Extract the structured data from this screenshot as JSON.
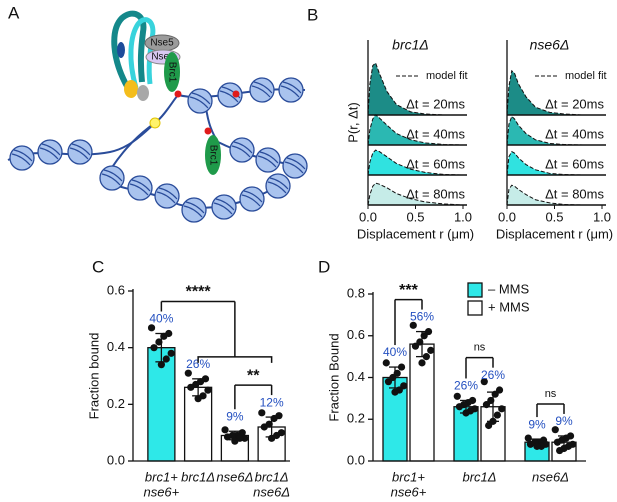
{
  "panels": [
    "A",
    "B",
    "C",
    "D"
  ],
  "diagram": {
    "nse5": "Nse5",
    "nse6": "Nse6",
    "brc1_top": "Brc1",
    "brc1_bottom": "Brc1"
  },
  "chart_data": [
    {
      "type": "density",
      "title": "brc1Δ",
      "legend_label": "model fit",
      "ylabel": "P(r, Δt)",
      "xlabel": "Displacement r (μm)",
      "x": [
        0,
        0.02,
        0.05,
        0.08,
        0.12,
        0.2,
        0.3,
        0.45,
        0.6,
        0.8,
        1.0
      ],
      "xlim": [
        0,
        1
      ],
      "xticks": [
        {
          "value": 0,
          "label": "0.0"
        },
        0.5,
        {
          "value": 1,
          "label": "1.0"
        }
      ],
      "ylim": [
        0,
        1
      ],
      "series": [
        {
          "name": "Δt = 20ms",
          "color": "#1c8c87",
          "values": [
            0,
            0.6,
            0.95,
            1.0,
            0.8,
            0.45,
            0.2,
            0.06,
            0.02,
            0,
            0
          ]
        },
        {
          "name": "Δt = 40ms",
          "color": "#2bb8b2",
          "values": [
            0,
            0.3,
            0.5,
            0.58,
            0.52,
            0.38,
            0.22,
            0.1,
            0.04,
            0.01,
            0
          ]
        },
        {
          "name": "Δt = 60ms",
          "color": "#30e2e0",
          "values": [
            0,
            0.25,
            0.42,
            0.48,
            0.45,
            0.35,
            0.22,
            0.11,
            0.05,
            0.01,
            0
          ]
        },
        {
          "name": "Δt = 80ms",
          "color": "#c6ece8",
          "values": [
            0,
            0.2,
            0.36,
            0.42,
            0.4,
            0.33,
            0.22,
            0.12,
            0.06,
            0.02,
            0
          ]
        }
      ]
    },
    {
      "type": "density",
      "title": "nse6Δ",
      "legend_label": "model fit",
      "xlabel": "Displacement r (μm)",
      "x": [
        0,
        0.02,
        0.05,
        0.08,
        0.12,
        0.2,
        0.3,
        0.45,
        0.6,
        0.8,
        1.0
      ],
      "xlim": [
        0,
        1
      ],
      "xticks": [
        {
          "value": 0,
          "label": "0.0"
        },
        0.5,
        {
          "value": 1,
          "label": "1.0"
        }
      ],
      "ylim": [
        0,
        1
      ],
      "series": [
        {
          "name": "Δt = 20ms",
          "color": "#1c8c87",
          "values": [
            0,
            0.55,
            0.85,
            0.8,
            0.6,
            0.35,
            0.15,
            0.05,
            0.02,
            0,
            0
          ]
        },
        {
          "name": "Δt = 40ms",
          "color": "#2bb8b2",
          "values": [
            0,
            0.4,
            0.55,
            0.5,
            0.38,
            0.22,
            0.1,
            0.03,
            0.01,
            0,
            0
          ]
        },
        {
          "name": "Δt = 60ms",
          "color": "#30e2e0",
          "values": [
            0,
            0.35,
            0.45,
            0.42,
            0.33,
            0.2,
            0.1,
            0.03,
            0.01,
            0,
            0
          ]
        },
        {
          "name": "Δt = 80ms",
          "color": "#c6ece8",
          "values": [
            0,
            0.3,
            0.38,
            0.36,
            0.3,
            0.2,
            0.1,
            0.04,
            0.01,
            0,
            0
          ]
        }
      ]
    },
    {
      "type": "bar",
      "ylabel": "Fraction bound",
      "categories": [
        [
          "brc1+",
          "nse6+"
        ],
        [
          "brc1Δ"
        ],
        [
          "nse6Δ"
        ],
        [
          "brc1Δ",
          "nse6Δ"
        ]
      ],
      "values": [
        0.4,
        0.26,
        0.09,
        0.12
      ],
      "value_labels": [
        "40%",
        "26%",
        "9%",
        "12%"
      ],
      "errors": [
        0.05,
        0.03,
        0.015,
        0.035
      ],
      "colors": [
        "#2ee8e8",
        "#ffffff",
        "#ffffff",
        "#ffffff"
      ],
      "points": [
        [
          0.47,
          0.45,
          0.44,
          0.42,
          0.4,
          0.38,
          0.36,
          0.34
        ],
        [
          0.31,
          0.29,
          0.28,
          0.27,
          0.26,
          0.25,
          0.23,
          0.22
        ],
        [
          0.11,
          0.1,
          0.09,
          0.09,
          0.085,
          0.08,
          0.08,
          0.07
        ],
        [
          0.17,
          0.16,
          0.15,
          0.13,
          0.12,
          0.1,
          0.09,
          0.08
        ]
      ],
      "ylim": [
        0,
        0.6
      ],
      "yticks": [
        {
          "value": 0,
          "label": "0.0"
        },
        0.2,
        0.4,
        0.6
      ],
      "annotations": [
        {
          "label": "****",
          "groups": [
            [
              0
            ],
            [
              1,
              2,
              3
            ]
          ]
        },
        {
          "label": "**",
          "groups": [
            [
              2
            ],
            [
              3
            ]
          ]
        }
      ]
    },
    {
      "type": "bar",
      "ylabel": "Fraction Bound",
      "categories": [
        [
          "brc1+",
          "nse6+"
        ],
        [
          "brc1Δ"
        ],
        [
          "nse6Δ"
        ]
      ],
      "series": [
        {
          "name": "– MMS",
          "color": "#2ee8e8",
          "values": [
            0.4,
            0.26,
            0.09
          ],
          "value_labels": [
            "40%",
            "26%",
            "9%"
          ],
          "errors": [
            0.05,
            0.03,
            0.015
          ],
          "points": [
            [
              0.47,
              0.45,
              0.42,
              0.4,
              0.38,
              0.36,
              0.34,
              0.33
            ],
            [
              0.31,
              0.29,
              0.28,
              0.27,
              0.26,
              0.25,
              0.24,
              0.23
            ],
            [
              0.11,
              0.1,
              0.09,
              0.09,
              0.08,
              0.08,
              0.07,
              0.07
            ]
          ]
        },
        {
          "name": "+ MMS",
          "color": "#ffffff",
          "values": [
            0.56,
            0.26,
            0.09
          ],
          "value_labels": [
            "56%",
            "26%",
            "9%"
          ],
          "errors": [
            0.06,
            0.07,
            0.03
          ],
          "points": [
            [
              0.65,
              0.62,
              0.6,
              0.57,
              0.55,
              0.53,
              0.5,
              0.47
            ],
            [
              0.38,
              0.34,
              0.32,
              0.29,
              0.27,
              0.25,
              0.22,
              0.19,
              0.17
            ],
            [
              0.15,
              0.12,
              0.11,
              0.1,
              0.09,
              0.08,
              0.07,
              0.06,
              0.05
            ]
          ]
        }
      ],
      "ylim": [
        0,
        0.8
      ],
      "yticks": [
        {
          "value": 0,
          "label": "0.0"
        },
        0.2,
        0.4,
        0.6,
        0.8
      ],
      "annotations": [
        {
          "label": "***",
          "category": 0
        },
        {
          "label": "ns",
          "category": 1
        },
        {
          "label": "ns",
          "category": 2
        }
      ]
    }
  ]
}
